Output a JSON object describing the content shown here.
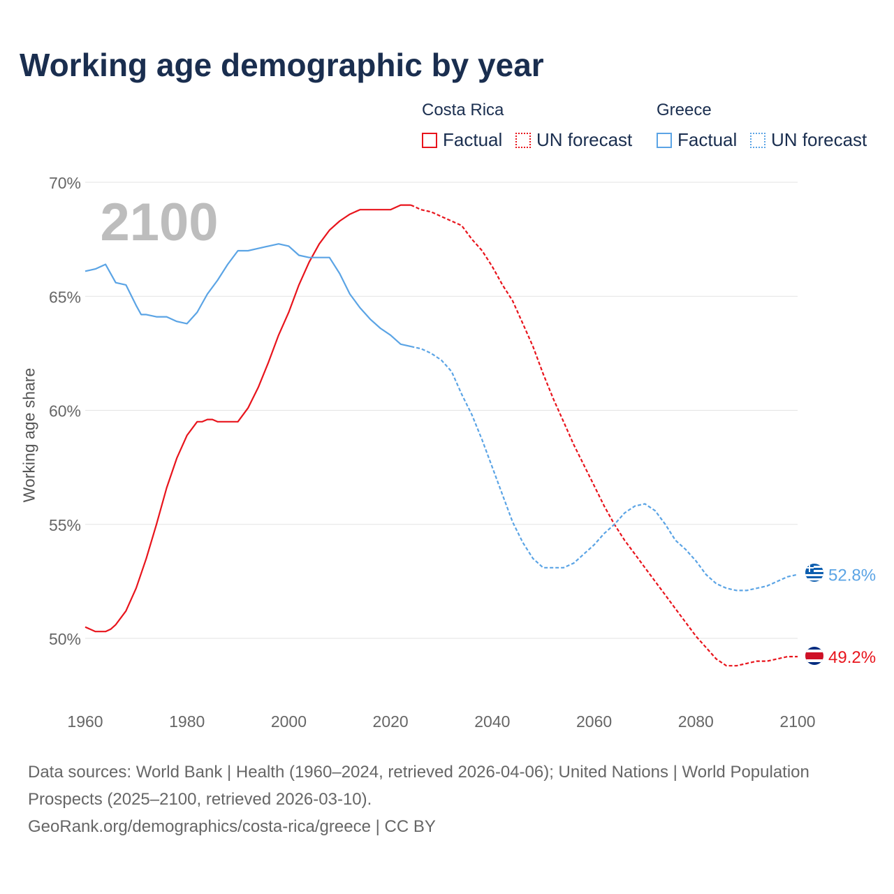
{
  "title": "Working age demographic by year",
  "legend": {
    "groups": [
      {
        "name": "Costa Rica",
        "color": "#e8141c",
        "factual_label": "Factual",
        "forecast_label": "UN forecast"
      },
      {
        "name": "Greece",
        "color": "#5ba4e5",
        "factual_label": "Factual",
        "forecast_label": "UN forecast"
      }
    ]
  },
  "source": {
    "line1": "Data sources: World Bank | Health (1960–2024, retrieved 2026-04-06); United Nations | World Population Prospects (2025–2100, retrieved 2026-03-10).",
    "line2": "GeoRank.org/demographics/costa-rica/greece | CC BY"
  },
  "chart_data": {
    "type": "line",
    "title": "Working age demographic by year",
    "xlabel": "",
    "ylabel": "Working age share",
    "xlim": [
      1960,
      2100
    ],
    "ylim": [
      47.5,
      70
    ],
    "x_ticks": [
      1960,
      1980,
      2000,
      2020,
      2040,
      2060,
      2080,
      2100
    ],
    "y_ticks": [
      50,
      55,
      60,
      65,
      70
    ],
    "y_tick_labels": [
      "50%",
      "55%",
      "60%",
      "65%",
      "70%"
    ],
    "grid": true,
    "year_watermark": "2100",
    "forecast_start": 2024,
    "series": [
      {
        "name": "Costa Rica",
        "color": "#e8141c",
        "end_label": "49.2%",
        "end_value": 49.2,
        "points": [
          [
            1960,
            50.5
          ],
          [
            1962,
            50.3
          ],
          [
            1964,
            50.3
          ],
          [
            1965,
            50.4
          ],
          [
            1966,
            50.6
          ],
          [
            1968,
            51.2
          ],
          [
            1970,
            52.2
          ],
          [
            1972,
            53.5
          ],
          [
            1974,
            55.0
          ],
          [
            1976,
            56.6
          ],
          [
            1978,
            57.9
          ],
          [
            1980,
            58.9
          ],
          [
            1982,
            59.5
          ],
          [
            1983,
            59.5
          ],
          [
            1984,
            59.6
          ],
          [
            1985,
            59.6
          ],
          [
            1986,
            59.5
          ],
          [
            1988,
            59.5
          ],
          [
            1990,
            59.5
          ],
          [
            1992,
            60.1
          ],
          [
            1994,
            61.0
          ],
          [
            1996,
            62.1
          ],
          [
            1998,
            63.3
          ],
          [
            2000,
            64.3
          ],
          [
            2002,
            65.5
          ],
          [
            2004,
            66.5
          ],
          [
            2006,
            67.3
          ],
          [
            2008,
            67.9
          ],
          [
            2010,
            68.3
          ],
          [
            2012,
            68.6
          ],
          [
            2014,
            68.8
          ],
          [
            2016,
            68.8
          ],
          [
            2018,
            68.8
          ],
          [
            2020,
            68.8
          ],
          [
            2022,
            69.0
          ],
          [
            2024,
            69.0
          ],
          [
            2026,
            68.8
          ],
          [
            2028,
            68.7
          ],
          [
            2030,
            68.5
          ],
          [
            2032,
            68.3
          ],
          [
            2034,
            68.1
          ],
          [
            2036,
            67.5
          ],
          [
            2038,
            67.0
          ],
          [
            2040,
            66.3
          ],
          [
            2042,
            65.5
          ],
          [
            2044,
            64.8
          ],
          [
            2046,
            63.8
          ],
          [
            2048,
            62.8
          ],
          [
            2050,
            61.6
          ],
          [
            2052,
            60.5
          ],
          [
            2054,
            59.5
          ],
          [
            2056,
            58.5
          ],
          [
            2058,
            57.6
          ],
          [
            2060,
            56.7
          ],
          [
            2062,
            55.8
          ],
          [
            2064,
            55.0
          ],
          [
            2066,
            54.3
          ],
          [
            2068,
            53.7
          ],
          [
            2070,
            53.1
          ],
          [
            2072,
            52.5
          ],
          [
            2074,
            51.9
          ],
          [
            2076,
            51.3
          ],
          [
            2078,
            50.7
          ],
          [
            2080,
            50.1
          ],
          [
            2082,
            49.6
          ],
          [
            2084,
            49.1
          ],
          [
            2086,
            48.8
          ],
          [
            2088,
            48.8
          ],
          [
            2090,
            48.9
          ],
          [
            2092,
            49.0
          ],
          [
            2094,
            49.0
          ],
          [
            2096,
            49.1
          ],
          [
            2098,
            49.2
          ],
          [
            2100,
            49.2
          ]
        ]
      },
      {
        "name": "Greece",
        "color": "#5ba4e5",
        "end_label": "52.8%",
        "end_value": 52.8,
        "points": [
          [
            1960,
            66.1
          ],
          [
            1962,
            66.2
          ],
          [
            1964,
            66.4
          ],
          [
            1966,
            65.6
          ],
          [
            1968,
            65.5
          ],
          [
            1970,
            64.6
          ],
          [
            1971,
            64.2
          ],
          [
            1972,
            64.2
          ],
          [
            1974,
            64.1
          ],
          [
            1976,
            64.1
          ],
          [
            1978,
            63.9
          ],
          [
            1980,
            63.8
          ],
          [
            1982,
            64.3
          ],
          [
            1984,
            65.1
          ],
          [
            1986,
            65.7
          ],
          [
            1988,
            66.4
          ],
          [
            1990,
            67.0
          ],
          [
            1992,
            67.0
          ],
          [
            1994,
            67.1
          ],
          [
            1996,
            67.2
          ],
          [
            1998,
            67.3
          ],
          [
            2000,
            67.2
          ],
          [
            2002,
            66.8
          ],
          [
            2004,
            66.7
          ],
          [
            2006,
            66.7
          ],
          [
            2008,
            66.7
          ],
          [
            2010,
            66.0
          ],
          [
            2012,
            65.1
          ],
          [
            2014,
            64.5
          ],
          [
            2016,
            64.0
          ],
          [
            2018,
            63.6
          ],
          [
            2020,
            63.3
          ],
          [
            2022,
            62.9
          ],
          [
            2024,
            62.8
          ],
          [
            2026,
            62.7
          ],
          [
            2028,
            62.5
          ],
          [
            2030,
            62.2
          ],
          [
            2032,
            61.7
          ],
          [
            2034,
            60.7
          ],
          [
            2036,
            59.8
          ],
          [
            2038,
            58.7
          ],
          [
            2040,
            57.5
          ],
          [
            2042,
            56.3
          ],
          [
            2044,
            55.1
          ],
          [
            2046,
            54.2
          ],
          [
            2048,
            53.5
          ],
          [
            2050,
            53.1
          ],
          [
            2052,
            53.1
          ],
          [
            2054,
            53.1
          ],
          [
            2056,
            53.3
          ],
          [
            2058,
            53.7
          ],
          [
            2060,
            54.1
          ],
          [
            2062,
            54.6
          ],
          [
            2064,
            55.0
          ],
          [
            2066,
            55.5
          ],
          [
            2068,
            55.8
          ],
          [
            2070,
            55.9
          ],
          [
            2072,
            55.6
          ],
          [
            2074,
            55.0
          ],
          [
            2076,
            54.3
          ],
          [
            2078,
            53.9
          ],
          [
            2080,
            53.4
          ],
          [
            2082,
            52.8
          ],
          [
            2084,
            52.4
          ],
          [
            2086,
            52.2
          ],
          [
            2088,
            52.1
          ],
          [
            2090,
            52.1
          ],
          [
            2092,
            52.2
          ],
          [
            2094,
            52.3
          ],
          [
            2096,
            52.5
          ],
          [
            2098,
            52.7
          ],
          [
            2100,
            52.8
          ]
        ]
      }
    ]
  }
}
